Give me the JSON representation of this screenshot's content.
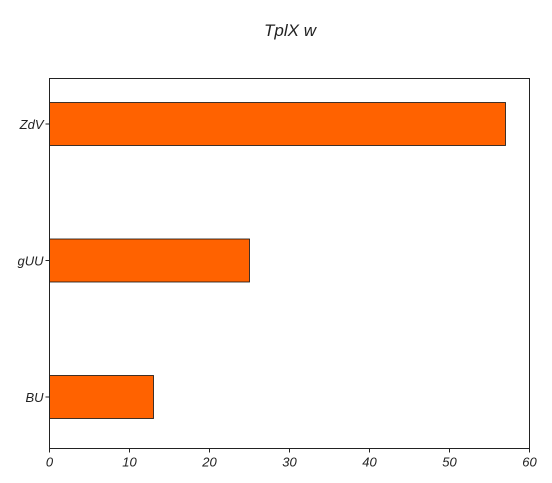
{
  "chart_data": {
    "type": "bar",
    "orientation": "horizontal",
    "title": "TplX  w",
    "xlabel": "",
    "ylabel": "",
    "categories": [
      "ZdV",
      "gUU",
      "BU"
    ],
    "values": [
      57,
      25,
      13
    ],
    "xlim": [
      0,
      60
    ],
    "x_ticks": [
      0,
      10,
      20,
      30,
      40,
      50,
      60
    ],
    "grid": false,
    "bar_color": "#ff6200"
  }
}
